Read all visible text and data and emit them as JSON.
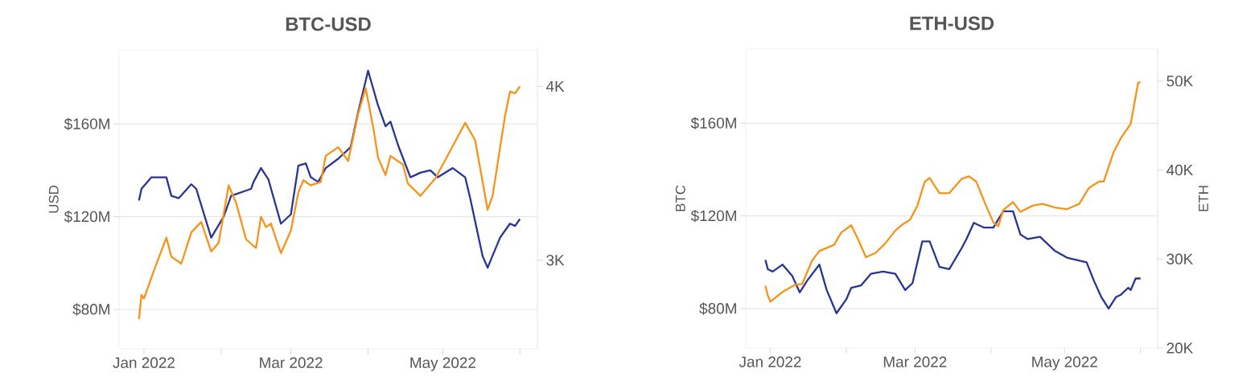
{
  "chart_data": [
    {
      "type": "line",
      "title": "BTC-USD",
      "ylabel": "USD",
      "grid": "y",
      "xlim": [
        "2021-12-22",
        "2022-06-08"
      ],
      "xticks": [
        {
          "value": "2022-01-01",
          "label": "Jan 2022"
        },
        {
          "value": "2022-02-01",
          "label": null
        },
        {
          "value": "2022-03-01",
          "label": "Mar 2022"
        },
        {
          "value": "2022-04-01",
          "label": null
        },
        {
          "value": "2022-05-01",
          "label": "May 2022"
        },
        {
          "value": "2022-06-01",
          "label": null
        }
      ],
      "ylim": [
        63,
        192
      ],
      "yticks": [
        {
          "value": 80,
          "label": "$80M"
        },
        {
          "value": 120,
          "label": "$120M"
        },
        {
          "value": 160,
          "label": "$160M"
        }
      ],
      "y2lim": [
        2490,
        4210
      ],
      "y2ticks": [
        {
          "value": 3000,
          "label": "3K"
        },
        {
          "value": 4000,
          "label": "4K"
        }
      ],
      "series": [
        {
          "color": "#283593",
          "x": [
            "2021-12-30",
            "2021-12-31",
            "2022-01-04",
            "2022-01-10",
            "2022-01-12",
            "2022-01-15",
            "2022-01-20",
            "2022-01-22",
            "2022-01-28",
            "2022-02-02",
            "2022-02-05",
            "2022-02-13",
            "2022-02-14",
            "2022-02-17",
            "2022-02-20",
            "2022-02-25",
            "2022-03-01",
            "2022-03-04",
            "2022-03-07",
            "2022-03-09",
            "2022-03-12",
            "2022-03-15",
            "2022-03-20",
            "2022-03-25",
            "2022-03-28",
            "2022-04-01",
            "2022-04-05",
            "2022-04-08",
            "2022-04-10",
            "2022-04-13",
            "2022-04-18",
            "2022-04-22",
            "2022-04-26",
            "2022-04-29",
            "2022-05-05",
            "2022-05-10",
            "2022-05-12",
            "2022-05-17",
            "2022-05-19",
            "2022-05-24",
            "2022-05-28",
            "2022-05-30",
            "2022-06-01"
          ],
          "values": [
            127,
            132,
            137,
            137,
            129,
            128,
            134,
            132,
            111,
            120,
            129,
            132,
            135,
            141,
            136,
            117,
            121,
            142,
            143,
            137,
            135,
            141,
            145,
            150,
            165,
            183,
            168,
            159,
            161,
            151,
            137,
            139,
            140,
            137,
            141,
            137,
            128,
            103,
            98,
            111,
            117,
            116,
            119
          ]
        },
        {
          "color": "#f7931a",
          "axis": "y2",
          "x": [
            "2021-12-30",
            "2021-12-31",
            "2022-01-01",
            "2022-01-05",
            "2022-01-10",
            "2022-01-12",
            "2022-01-16",
            "2022-01-20",
            "2022-01-24",
            "2022-01-28",
            "2022-01-31",
            "2022-02-04",
            "2022-02-07",
            "2022-02-11",
            "2022-02-15",
            "2022-02-17",
            "2022-02-19",
            "2022-02-21",
            "2022-02-25",
            "2022-03-01",
            "2022-03-04",
            "2022-03-06",
            "2022-03-09",
            "2022-03-13",
            "2022-03-15",
            "2022-03-20",
            "2022-03-24",
            "2022-03-28",
            "2022-03-31",
            "2022-04-03",
            "2022-04-05",
            "2022-04-08",
            "2022-04-10",
            "2022-04-15",
            "2022-04-17",
            "2022-04-22",
            "2022-04-28",
            "2022-05-04",
            "2022-05-10",
            "2022-05-14",
            "2022-05-19",
            "2022-05-21",
            "2022-05-26",
            "2022-05-28",
            "2022-05-30",
            "2022-06-01"
          ],
          "values": [
            2660,
            2800,
            2780,
            2940,
            3130,
            3020,
            2980,
            3160,
            3220,
            3050,
            3100,
            3430,
            3330,
            3120,
            3070,
            3250,
            3190,
            3210,
            3040,
            3170,
            3390,
            3460,
            3430,
            3450,
            3600,
            3650,
            3570,
            3840,
            3990,
            3770,
            3590,
            3490,
            3600,
            3550,
            3440,
            3370,
            3470,
            3630,
            3790,
            3690,
            3290,
            3370,
            3830,
            3970,
            3960,
            4000
          ]
        }
      ]
    },
    {
      "type": "line",
      "title": "ETH-USD",
      "ylabel": "BTC",
      "y2label": "ETH",
      "grid": "y",
      "xlim": [
        "2021-12-22",
        "2022-06-08"
      ],
      "xticks": [
        {
          "value": "2022-01-01",
          "label": "Jan 2022"
        },
        {
          "value": "2022-02-01",
          "label": null
        },
        {
          "value": "2022-03-01",
          "label": "Mar 2022"
        },
        {
          "value": "2022-04-01",
          "label": null
        },
        {
          "value": "2022-05-01",
          "label": "May 2022"
        },
        {
          "value": "2022-06-01",
          "label": null
        }
      ],
      "ylim": [
        63,
        192
      ],
      "yticks": [
        {
          "value": 80,
          "label": "$80M"
        },
        {
          "value": 120,
          "label": "$120M"
        },
        {
          "value": 160,
          "label": "$160M"
        }
      ],
      "y2lim": [
        20000,
        53600
      ],
      "y2ticks": [
        {
          "value": 20000,
          "label": "20K"
        },
        {
          "value": 30000,
          "label": "30K"
        },
        {
          "value": 40000,
          "label": "40K"
        },
        {
          "value": 50000,
          "label": "50K"
        }
      ],
      "series": [
        {
          "color": "#283593",
          "x": [
            "2021-12-30",
            "2021-12-31",
            "2022-01-02",
            "2022-01-06",
            "2022-01-10",
            "2022-01-13",
            "2022-01-16",
            "2022-01-21",
            "2022-01-24",
            "2022-01-28",
            "2022-02-01",
            "2022-02-03",
            "2022-02-07",
            "2022-02-11",
            "2022-02-16",
            "2022-02-21",
            "2022-02-25",
            "2022-02-28",
            "2022-03-04",
            "2022-03-07",
            "2022-03-11",
            "2022-03-15",
            "2022-03-20",
            "2022-03-22",
            "2022-03-25",
            "2022-03-29",
            "2022-04-02",
            "2022-04-06",
            "2022-04-10",
            "2022-04-13",
            "2022-04-16",
            "2022-04-21",
            "2022-04-27",
            "2022-05-02",
            "2022-05-10",
            "2022-05-13",
            "2022-05-16",
            "2022-05-19",
            "2022-05-22",
            "2022-05-24",
            "2022-05-27",
            "2022-05-28",
            "2022-05-30",
            "2022-06-01"
          ],
          "values": [
            101,
            97,
            96,
            99,
            94,
            87,
            92,
            99,
            88,
            78,
            84,
            89,
            90,
            95,
            96,
            95,
            88,
            91,
            109,
            109,
            98,
            97,
            106,
            110,
            117,
            115,
            115,
            122,
            122,
            112,
            110,
            111,
            105,
            102,
            100,
            92,
            85,
            80,
            85,
            86,
            89,
            88,
            93,
            93
          ]
        },
        {
          "color": "#f7931a",
          "axis": "y2",
          "x": [
            "2021-12-30",
            "2021-12-31",
            "2022-01-01",
            "2022-01-06",
            "2022-01-11",
            "2022-01-14",
            "2022-01-18",
            "2022-01-21",
            "2022-01-27",
            "2022-01-30",
            "2022-02-03",
            "2022-02-06",
            "2022-02-09",
            "2022-02-13",
            "2022-02-17",
            "2022-02-21",
            "2022-02-24",
            "2022-02-27",
            "2022-03-02",
            "2022-03-05",
            "2022-03-07",
            "2022-03-11",
            "2022-03-15",
            "2022-03-20",
            "2022-03-23",
            "2022-03-26",
            "2022-03-30",
            "2022-04-02",
            "2022-04-04",
            "2022-04-06",
            "2022-04-10",
            "2022-04-13",
            "2022-04-18",
            "2022-04-22",
            "2022-04-27",
            "2022-05-02",
            "2022-05-07",
            "2022-05-11",
            "2022-05-15",
            "2022-05-17",
            "2022-05-21",
            "2022-05-24",
            "2022-05-28",
            "2022-05-31",
            "2022-06-01"
          ],
          "values": [
            27000,
            25900,
            25200,
            26300,
            27100,
            27200,
            29800,
            30900,
            31600,
            33000,
            33800,
            32100,
            30200,
            30700,
            31800,
            33200,
            33900,
            34400,
            36000,
            38700,
            39100,
            37400,
            37400,
            39000,
            39300,
            38700,
            36000,
            34100,
            33700,
            35500,
            36400,
            35300,
            36000,
            36200,
            35800,
            35600,
            36200,
            38000,
            38700,
            38700,
            42000,
            43600,
            45200,
            49800,
            49900
          ]
        }
      ]
    }
  ]
}
